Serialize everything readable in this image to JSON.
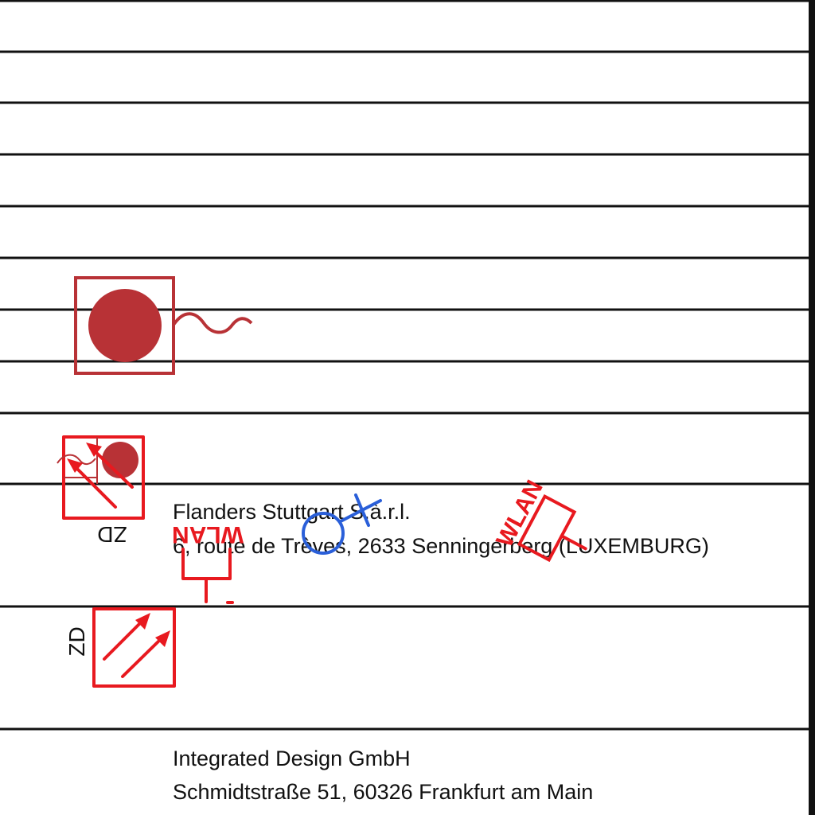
{
  "colors": {
    "line": "#111111",
    "symbol_red": "#e8191f",
    "symbol_dark_red": "#b83236",
    "symbol_blue": "#2a5fd9"
  },
  "icons": [
    "horn-siren-icon",
    "smoke-detector-icon",
    "entry-arrows-icon",
    "wlan-antenna-icon",
    "blue-marker-icon"
  ],
  "labels": {
    "zd_upper": "ZD",
    "zd_lower": "ZD",
    "wlan_left": "WLAN",
    "wlan_right": "WLAN"
  },
  "addresses": [
    {
      "company": "Flanders Stuttgart S.à.r.l.",
      "street": "6, route de Trèves,  2633 Senningerberg (LUXEMBURG)"
    },
    {
      "company": "Integrated Design GmbH",
      "street": "Schmidtstraße 51,  60326 Frankfurt am Main"
    }
  ]
}
